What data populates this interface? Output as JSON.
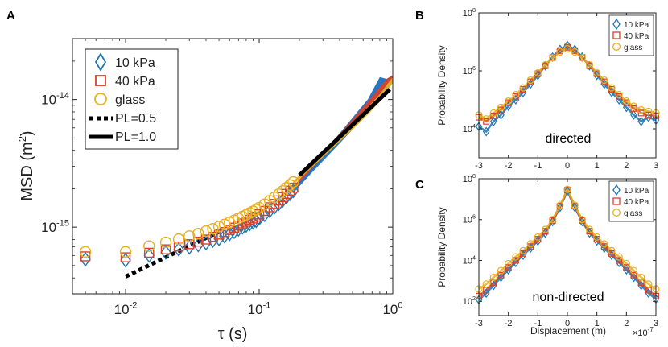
{
  "figure": {
    "colors": {
      "s10": "#1f77b4",
      "s40": "#d9412b",
      "glass": "#e8b020",
      "axis": "#222222",
      "fill10": "#1b6fc0"
    }
  },
  "chart_data": [
    {
      "panel_label": "A",
      "type": "scatter",
      "xscale": "log",
      "yscale": "log",
      "xlim": [
        0.004,
        1.0
      ],
      "ylim": [
        3e-16,
        3e-14
      ],
      "xticks": [
        0.01,
        0.1,
        1
      ],
      "xtick_labels": [
        {
          "b": "10",
          "e": "-2"
        },
        {
          "b": "10",
          "e": "-1"
        },
        {
          "b": "10",
          "e": "0"
        }
      ],
      "yticks": [
        1e-15,
        1e-14
      ],
      "ytick_labels": [
        {
          "b": "10",
          "e": "-15"
        },
        {
          "b": "10",
          "e": "-14"
        }
      ],
      "xlabel": "τ (s)",
      "ylabel": {
        "pre": "MSD (m",
        "sup": "2",
        "post": ")"
      },
      "legend_location": "top-left",
      "legend": [
        {
          "label": "10 kPa",
          "marker": "diamond",
          "color": "#1f77b4"
        },
        {
          "label": "40 kPa",
          "marker": "square",
          "color": "#d9412b"
        },
        {
          "label": "glass",
          "marker": "circle",
          "color": "#e8b020"
        },
        {
          "label": "PL=0.5",
          "line": "dotted"
        },
        {
          "label": "PL=1.0",
          "line": "solid"
        }
      ],
      "series": [
        {
          "name": "10 kPa",
          "marker": "diamond",
          "color": "#1f77b4",
          "x": [
            0.005,
            0.01,
            0.015,
            0.02,
            0.025,
            0.03,
            0.035,
            0.04,
            0.045,
            0.05,
            0.055,
            0.06,
            0.065,
            0.07,
            0.075,
            0.08,
            0.085,
            0.09,
            0.095,
            0.1,
            0.11,
            0.12,
            0.13,
            0.14,
            0.15,
            0.16,
            0.17,
            0.18
          ],
          "y": [
            5.6e-16,
            5.5e-16,
            6e-16,
            6.35e-16,
            6.7e-16,
            6.95e-16,
            7.25e-16,
            7.5e-16,
            7.85e-16,
            8.1e-16,
            8.5e-16,
            8.85e-16,
            9.2e-16,
            9.6e-16,
            9.95e-16,
            1.03e-15,
            1.06e-15,
            1.09e-15,
            1.12e-15,
            1.17e-15,
            1.25e-15,
            1.34e-15,
            1.43e-15,
            1.52e-15,
            1.62e-15,
            1.72e-15,
            1.82e-15,
            1.92e-15
          ]
        },
        {
          "name": "40 kPa",
          "marker": "square",
          "color": "#d9412b",
          "x": [
            0.005,
            0.01,
            0.015,
            0.02,
            0.025,
            0.03,
            0.035,
            0.04,
            0.045,
            0.05,
            0.055,
            0.06,
            0.065,
            0.07,
            0.075,
            0.08,
            0.085,
            0.09,
            0.095,
            0.1,
            0.11,
            0.12,
            0.13,
            0.14,
            0.15,
            0.16,
            0.17,
            0.18
          ],
          "y": [
            5.9e-16,
            5.8e-16,
            6.3e-16,
            6.7e-16,
            7.05e-16,
            7.35e-16,
            7.7e-16,
            8e-16,
            8.4e-16,
            8.75e-16,
            9.15e-16,
            9.5e-16,
            9.9e-16,
            1.03e-15,
            1.07e-15,
            1.1e-15,
            1.14e-15,
            1.17e-15,
            1.21e-15,
            1.26e-15,
            1.34e-15,
            1.43e-15,
            1.52e-15,
            1.62e-15,
            1.72e-15,
            1.82e-15,
            1.93e-15,
            2.04e-15
          ]
        },
        {
          "name": "glass",
          "marker": "circle",
          "color": "#e8b020",
          "x": [
            0.005,
            0.01,
            0.015,
            0.02,
            0.025,
            0.03,
            0.035,
            0.04,
            0.045,
            0.05,
            0.055,
            0.06,
            0.065,
            0.07,
            0.075,
            0.08,
            0.085,
            0.09,
            0.095,
            0.1,
            0.11,
            0.12,
            0.13,
            0.14,
            0.15,
            0.16,
            0.17,
            0.18
          ],
          "y": [
            6.4e-16,
            6.4e-16,
            7.1e-16,
            7.6e-16,
            8.05e-16,
            8.5e-16,
            8.9e-16,
            9.3e-16,
            9.7e-16,
            1.01e-15,
            1.05e-15,
            1.09e-15,
            1.13e-15,
            1.17e-15,
            1.21e-15,
            1.25e-15,
            1.29e-15,
            1.33e-15,
            1.37e-15,
            1.42e-15,
            1.51e-15,
            1.61e-15,
            1.71e-15,
            1.81e-15,
            1.92e-15,
            2.03e-15,
            2.14e-15,
            2.26e-15
          ]
        }
      ],
      "bands": [
        {
          "name": "10 kPa",
          "color": "#1b6fc0",
          "x": [
            0.18,
            0.25,
            0.35,
            0.5,
            0.65,
            0.8,
            0.9,
            1.0
          ],
          "upper": [
            2e-15,
            3e-15,
            4.6e-15,
            7.2e-15,
            1e-14,
            1.5e-14,
            1.45e-14,
            1.55e-14
          ],
          "lower": [
            1.85e-15,
            2.7e-15,
            3.9e-15,
            5.8e-15,
            8e-15,
            1.05e-14,
            1.2e-14,
            1.35e-14
          ]
        },
        {
          "name": "40 kPa",
          "color": "#d9412b",
          "x": [
            0.18,
            0.25,
            0.35,
            0.5,
            0.65,
            0.8,
            0.9,
            1.0
          ],
          "upper": [
            2.08e-15,
            3.1e-15,
            4.6e-15,
            7e-15,
            9.6e-15,
            1.25e-14,
            1.45e-14,
            1.55e-14
          ],
          "lower": [
            1.98e-15,
            2.9e-15,
            4.2e-15,
            6.2e-15,
            8.4e-15,
            1.1e-14,
            1.3e-14,
            1.45e-14
          ]
        },
        {
          "name": "glass",
          "color": "#e8b020",
          "x": [
            0.18,
            0.25,
            0.35,
            0.5,
            0.65,
            0.8,
            0.9,
            1.0
          ],
          "upper": [
            2.3e-15,
            3.2e-15,
            4.5e-15,
            6.5e-15,
            8.7e-15,
            1.1e-14,
            1.3e-14,
            1.5e-14
          ],
          "lower": [
            2.15e-15,
            2.95e-15,
            4.1e-15,
            5.8e-15,
            7.6e-15,
            9.6e-15,
            1.15e-14,
            1.35e-14
          ]
        }
      ],
      "reference_lines": [
        {
          "name": "PL=0.5",
          "style": "dotted",
          "x": [
            0.01,
            0.05
          ],
          "y": [
            4.1e-16,
            9.2e-16
          ]
        },
        {
          "name": "PL=1.0",
          "style": "solid",
          "x": [
            0.2,
            0.95
          ],
          "y": [
            2.55e-15,
            1.2e-14
          ]
        }
      ]
    },
    {
      "panel_label": "B",
      "type": "scatter",
      "yscale": "log",
      "xlim": [
        -3,
        3
      ],
      "ylim": [
        1000,
        100000000.0
      ],
      "xticks": [
        -3,
        -2,
        -1,
        0,
        1,
        2,
        3
      ],
      "xtick_labels": [
        "-3",
        "-2",
        "-1",
        "0",
        "1",
        "2",
        "3"
      ],
      "yticks": [
        10000,
        1000000,
        100000000
      ],
      "ytick_labels": [
        {
          "b": "10",
          "e": "4"
        },
        {
          "b": "10",
          "e": "6"
        },
        {
          "b": "10",
          "e": "8"
        }
      ],
      "ylabel": "Probability Density",
      "annotation": "directed",
      "legend_location": "top-right",
      "legend": [
        {
          "label": "10 kPa",
          "marker": "diamond",
          "color": "#1f77b4"
        },
        {
          "label": "40 kPa",
          "marker": "square",
          "color": "#d9412b"
        },
        {
          "label": "glass",
          "marker": "circle",
          "color": "#e8b020"
        }
      ],
      "x": [
        -3.0,
        -2.75,
        -2.5,
        -2.25,
        -2.0,
        -1.75,
        -1.5,
        -1.25,
        -1.0,
        -0.75,
        -0.5,
        -0.25,
        0.0,
        0.25,
        0.5,
        0.75,
        1.0,
        1.25,
        1.5,
        1.75,
        2.0,
        2.25,
        2.5,
        2.75,
        3.0
      ],
      "series": [
        {
          "name": "10 kPa",
          "marker": "diamond",
          "color": "#1f77b4",
          "values": [
            12000,
            8000,
            18000,
            30000,
            60000,
            100000,
            180000,
            350000,
            700000,
            1500000,
            3000000,
            5500000,
            7500000,
            5500000,
            3000000,
            1500000,
            700000,
            350000,
            180000,
            100000,
            55000,
            30000,
            18000,
            25000,
            20000
          ]
        },
        {
          "name": "40 kPa",
          "marker": "square",
          "color": "#d9412b",
          "values": [
            25000,
            18000,
            28000,
            45000,
            80000,
            130000,
            230000,
            420000,
            800000,
            1500000,
            2900000,
            5000000,
            6500000,
            5000000,
            2900000,
            1500000,
            800000,
            420000,
            230000,
            130000,
            80000,
            50000,
            35000,
            30000,
            28000
          ]
        },
        {
          "name": "glass",
          "marker": "circle",
          "color": "#e8b020",
          "values": [
            30000,
            22000,
            35000,
            55000,
            90000,
            150000,
            260000,
            480000,
            850000,
            1600000,
            2800000,
            4500000,
            5800000,
            4500000,
            2800000,
            1600000,
            850000,
            480000,
            260000,
            150000,
            90000,
            60000,
            45000,
            40000,
            35000
          ]
        }
      ]
    },
    {
      "panel_label": "C",
      "type": "scatter",
      "yscale": "log",
      "xlim": [
        -3,
        3
      ],
      "ylim": [
        20,
        100000000.0
      ],
      "xticks": [
        -3,
        -2,
        -1,
        0,
        1,
        2,
        3
      ],
      "xtick_labels": [
        "-3",
        "-2",
        "-1",
        "0",
        "1",
        "2",
        "3"
      ],
      "yticks": [
        100,
        10000,
        1000000,
        100000000
      ],
      "ytick_labels": [
        {
          "b": "10",
          "e": "2"
        },
        {
          "b": "10",
          "e": "4"
        },
        {
          "b": "10",
          "e": "6"
        },
        {
          "b": "10",
          "e": "8"
        }
      ],
      "xlabel": "Displacement (m)",
      "x_multiplier": {
        "pre": "×10",
        "sup": "-7"
      },
      "ylabel": "Probability Density",
      "annotation": "non-directed",
      "legend_location": "top-right",
      "legend": [
        {
          "label": "10 kPa",
          "marker": "diamond",
          "color": "#1f77b4"
        },
        {
          "label": "40 kPa",
          "marker": "square",
          "color": "#d9412b"
        },
        {
          "label": "glass",
          "marker": "circle",
          "color": "#e8b020"
        }
      ],
      "x": [
        -3.0,
        -2.75,
        -2.5,
        -2.25,
        -2.0,
        -1.75,
        -1.5,
        -1.25,
        -1.0,
        -0.75,
        -0.5,
        -0.25,
        0.0,
        0.25,
        0.5,
        0.75,
        1.0,
        1.25,
        1.5,
        1.75,
        2.0,
        2.25,
        2.5,
        2.75,
        3.0
      ],
      "series": [
        {
          "name": "10 kPa",
          "marker": "diamond",
          "color": "#1f77b4",
          "values": [
            120,
            250,
            600,
            1500,
            3500,
            8000,
            18000,
            40000,
            90000,
            220000,
            800000,
            4000000,
            25000000,
            4000000,
            800000,
            220000,
            90000,
            40000,
            18000,
            8000,
            3500,
            1500,
            600,
            250,
            130
          ]
        },
        {
          "name": "40 kPa",
          "marker": "square",
          "color": "#d9412b",
          "values": [
            180,
            350,
            800,
            1900,
            4500,
            10000,
            22000,
            48000,
            110000,
            270000,
            900000,
            4500000,
            28000000,
            4500000,
            900000,
            270000,
            110000,
            48000,
            22000,
            10000,
            4500,
            1900,
            800,
            350,
            180
          ]
        },
        {
          "name": "glass",
          "marker": "circle",
          "color": "#e8b020",
          "values": [
            400,
            700,
            1500,
            3200,
            7000,
            15000,
            30000,
            65000,
            140000,
            330000,
            1000000,
            5000000,
            30000000,
            5000000,
            1000000,
            330000,
            140000,
            65000,
            30000,
            15000,
            7000,
            3200,
            1500,
            700,
            400
          ]
        }
      ]
    }
  ]
}
